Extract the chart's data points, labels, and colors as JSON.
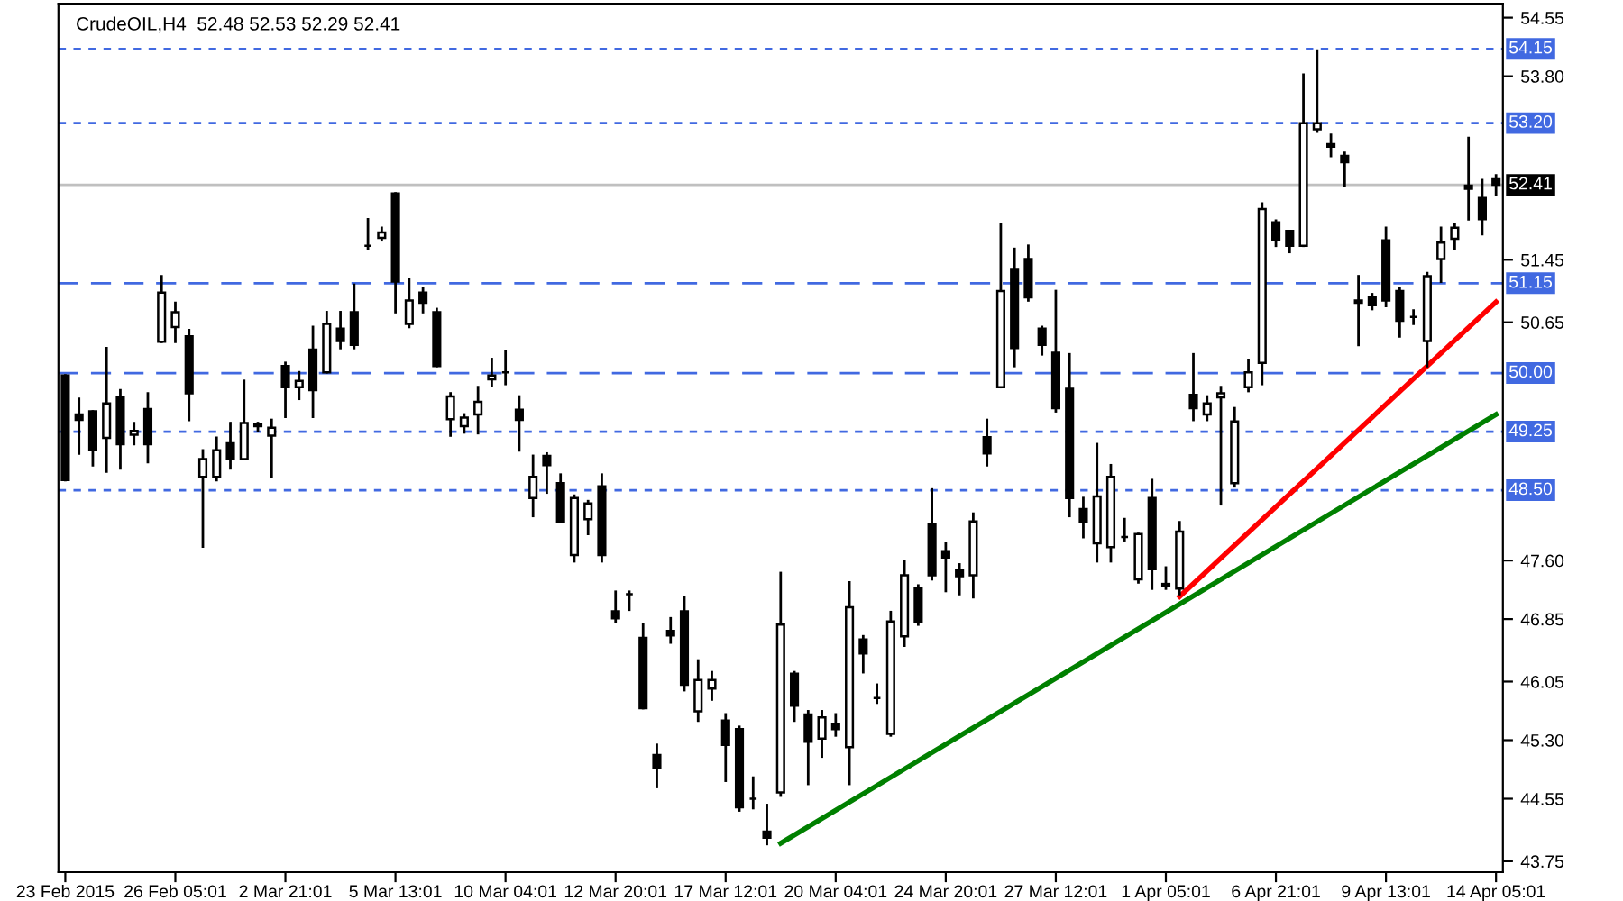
{
  "chart_data": {
    "type": "candlestick",
    "title": "CrudeOIL,H4  52.48 52.53 52.29 52.41",
    "categories": [
      "23 Feb 2015",
      null,
      null,
      null,
      null,
      null,
      null,
      null,
      "26 Feb 05:01",
      null,
      null,
      null,
      null,
      null,
      null,
      null,
      "2 Mar 21:01",
      null,
      null,
      null,
      null,
      null,
      null,
      null,
      "5 Mar 13:01",
      null,
      null,
      null,
      null,
      null,
      null,
      null,
      "10 Mar 04:01",
      null,
      null,
      null,
      null,
      null,
      null,
      null,
      "12 Mar 20:01",
      null,
      null,
      null,
      null,
      null,
      null,
      null,
      "17 Mar 12:01",
      null,
      null,
      null,
      null,
      null,
      null,
      null,
      "20 Mar 04:01",
      null,
      null,
      null,
      null,
      null,
      null,
      null,
      "24 Mar 20:01",
      null,
      null,
      null,
      null,
      null,
      null,
      null,
      "27 Mar 12:01",
      null,
      null,
      null,
      null,
      null,
      null,
      null,
      "1 Apr 05:01",
      null,
      null,
      null,
      null,
      null,
      null,
      null,
      "6 Apr 21:01",
      null,
      null,
      null,
      null,
      null,
      null,
      null,
      "9 Apr 13:01",
      null,
      null,
      null,
      null,
      null,
      null,
      null,
      "14 Apr 05:01"
    ],
    "ohlc": [
      [
        49.97,
        49.97,
        48.63,
        48.63
      ],
      [
        49.47,
        49.67,
        48.97,
        49.4
      ],
      [
        49.51,
        49.51,
        48.82,
        49.01
      ],
      [
        49.17,
        50.32,
        48.74,
        49.61
      ],
      [
        49.69,
        49.78,
        48.78,
        49.09
      ],
      [
        49.21,
        49.36,
        49.09,
        49.26
      ],
      [
        49.54,
        49.74,
        48.86,
        49.09
      ],
      [
        50.4,
        51.24,
        50.4,
        51.03
      ],
      [
        50.59,
        50.9,
        50.4,
        50.78
      ],
      [
        50.47,
        50.55,
        49.4,
        49.74
      ],
      [
        48.67,
        49.01,
        47.78,
        48.9
      ],
      [
        48.67,
        49.17,
        48.63,
        49.01
      ],
      [
        49.1,
        49.36,
        48.78,
        48.9
      ],
      [
        48.9,
        49.9,
        48.9,
        49.36
      ],
      [
        49.32,
        49.36,
        49.26,
        49.34
      ],
      [
        49.2,
        49.4,
        48.67,
        49.3
      ],
      [
        50.09,
        50.13,
        49.44,
        49.82
      ],
      [
        49.82,
        50.01,
        49.67,
        49.9
      ],
      [
        50.3,
        50.59,
        49.44,
        49.78
      ],
      [
        50.01,
        50.78,
        50.01,
        50.63
      ],
      [
        50.57,
        50.78,
        50.32,
        50.41
      ],
      [
        50.78,
        51.13,
        50.32,
        50.36
      ],
      [
        51.63,
        51.97,
        51.59,
        51.63
      ],
      [
        51.73,
        51.86,
        51.7,
        51.8
      ],
      [
        52.3,
        52.3,
        50.78,
        51.17
      ],
      [
        50.63,
        51.2,
        50.59,
        50.93
      ],
      [
        51.03,
        51.09,
        50.78,
        50.9
      ],
      [
        50.78,
        50.82,
        50.09,
        50.09
      ],
      [
        49.41,
        49.74,
        49.2,
        49.7
      ],
      [
        49.32,
        49.47,
        49.24,
        49.43
      ],
      [
        49.47,
        49.82,
        49.23,
        49.63
      ],
      [
        49.92,
        50.18,
        49.84,
        49.97
      ],
      [
        50.01,
        50.28,
        49.86,
        50.01
      ],
      [
        49.53,
        49.7,
        49.01,
        49.4
      ],
      [
        48.4,
        48.94,
        48.17,
        48.67
      ],
      [
        48.94,
        48.97,
        48.47,
        48.82
      ],
      [
        48.59,
        48.7,
        48.1,
        48.1
      ],
      [
        47.67,
        48.43,
        47.59,
        48.4
      ],
      [
        48.13,
        48.36,
        47.94,
        48.33
      ],
      [
        48.55,
        48.7,
        47.59,
        47.67
      ],
      [
        46.95,
        47.2,
        46.82,
        46.86
      ],
      [
        47.17,
        47.2,
        46.97,
        47.17
      ],
      [
        46.61,
        46.78,
        45.71,
        45.71
      ],
      [
        45.11,
        45.24,
        44.7,
        44.94
      ],
      [
        46.7,
        46.86,
        46.55,
        46.64
      ],
      [
        46.95,
        47.13,
        45.94,
        46.01
      ],
      [
        45.67,
        46.32,
        45.55,
        46.07
      ],
      [
        45.96,
        46.17,
        45.82,
        46.07
      ],
      [
        45.55,
        45.63,
        44.78,
        45.24
      ],
      [
        45.44,
        45.47,
        44.4,
        44.44
      ],
      [
        44.55,
        44.82,
        44.43,
        44.55
      ],
      [
        44.13,
        44.47,
        43.97,
        44.05
      ],
      [
        44.63,
        47.44,
        44.59,
        46.78
      ],
      [
        46.15,
        46.17,
        45.55,
        45.74
      ],
      [
        45.63,
        45.67,
        44.74,
        45.28
      ],
      [
        45.32,
        45.67,
        45.09,
        45.59
      ],
      [
        45.51,
        45.63,
        45.36,
        45.44
      ],
      [
        45.21,
        47.32,
        44.74,
        47.0
      ],
      [
        46.59,
        46.63,
        46.17,
        46.41
      ],
      [
        45.84,
        46.01,
        45.78,
        45.84
      ],
      [
        45.38,
        46.94,
        45.36,
        46.82
      ],
      [
        46.63,
        47.59,
        46.51,
        47.41
      ],
      [
        47.24,
        47.28,
        46.78,
        46.82
      ],
      [
        48.07,
        48.51,
        47.36,
        47.41
      ],
      [
        47.72,
        47.82,
        47.21,
        47.64
      ],
      [
        47.47,
        47.55,
        47.17,
        47.4
      ],
      [
        47.41,
        48.2,
        47.13,
        48.1
      ],
      [
        49.18,
        49.4,
        48.82,
        48.97
      ],
      [
        49.82,
        51.9,
        49.82,
        51.05
      ],
      [
        51.32,
        51.59,
        50.09,
        50.32
      ],
      [
        51.46,
        51.63,
        50.93,
        50.97
      ],
      [
        50.57,
        50.59,
        50.24,
        50.36
      ],
      [
        50.26,
        51.05,
        49.51,
        49.55
      ],
      [
        49.8,
        50.24,
        48.17,
        48.4
      ],
      [
        48.26,
        48.4,
        47.9,
        48.09
      ],
      [
        47.82,
        49.09,
        47.59,
        48.42
      ],
      [
        47.77,
        48.82,
        47.59,
        48.67
      ],
      [
        47.9,
        48.13,
        47.86,
        47.9
      ],
      [
        47.36,
        47.94,
        47.32,
        47.94
      ],
      [
        48.4,
        48.63,
        47.24,
        47.49
      ],
      [
        47.3,
        47.51,
        47.24,
        47.28
      ],
      [
        47.24,
        48.09,
        47.17,
        47.97
      ],
      [
        49.72,
        50.24,
        49.4,
        49.55
      ],
      [
        49.47,
        49.7,
        49.4,
        49.61
      ],
      [
        49.69,
        49.82,
        48.32,
        49.74
      ],
      [
        48.59,
        49.55,
        48.55,
        49.38
      ],
      [
        49.82,
        50.16,
        49.77,
        50.01
      ],
      [
        50.13,
        52.17,
        49.86,
        52.1
      ],
      [
        51.93,
        51.95,
        51.63,
        51.7
      ],
      [
        51.82,
        51.82,
        51.55,
        51.63
      ],
      [
        51.63,
        53.82,
        51.63,
        53.2
      ],
      [
        53.12,
        54.13,
        53.09,
        53.2
      ],
      [
        52.93,
        53.05,
        52.78,
        52.9
      ],
      [
        52.78,
        52.82,
        52.4,
        52.7
      ],
      [
        50.93,
        51.24,
        50.36,
        50.9
      ],
      [
        50.97,
        51.01,
        50.82,
        50.87
      ],
      [
        51.7,
        51.86,
        50.86,
        50.93
      ],
      [
        51.05,
        51.09,
        50.47,
        50.67
      ],
      [
        50.72,
        50.8,
        50.63,
        50.72
      ],
      [
        50.41,
        51.28,
        50.09,
        51.24
      ],
      [
        51.46,
        51.86,
        51.17,
        51.67
      ],
      [
        51.72,
        51.9,
        51.59,
        51.86
      ],
      [
        52.4,
        53.01,
        51.97,
        52.36
      ],
      [
        52.24,
        52.47,
        51.78,
        51.97
      ],
      [
        52.48,
        52.53,
        52.29,
        52.41
      ]
    ],
    "series": [
      {
        "type": "line",
        "color": "#008000",
        "values": [
          null,
          null,
          null,
          null,
          null,
          null,
          null,
          null,
          null,
          null,
          null,
          null,
          null,
          null,
          null,
          null,
          null,
          null,
          null,
          null,
          null,
          null,
          null,
          null,
          null,
          null,
          null,
          null,
          null,
          null,
          null,
          null,
          null,
          null,
          null,
          null,
          null,
          null,
          null,
          null,
          null,
          null,
          null,
          null,
          null,
          null,
          null,
          null,
          null,
          null,
          null,
          null,
          43.98,
          null,
          null,
          null,
          null,
          null,
          null,
          null,
          null,
          null,
          null,
          null,
          null,
          null,
          null,
          null,
          null,
          null,
          null,
          null,
          null,
          null,
          null,
          null,
          null,
          null,
          null,
          null,
          null,
          null,
          null,
          null,
          null,
          null,
          null,
          null,
          null,
          null,
          null,
          null,
          null,
          null,
          null,
          null,
          null,
          null,
          null,
          null,
          null,
          null,
          null,
          null,
          49.47
        ]
      },
      {
        "type": "line",
        "color": "#ff0000",
        "values": [
          null,
          null,
          null,
          null,
          null,
          null,
          null,
          null,
          null,
          null,
          null,
          null,
          null,
          null,
          null,
          null,
          null,
          null,
          null,
          null,
          null,
          null,
          null,
          null,
          null,
          null,
          null,
          null,
          null,
          null,
          null,
          null,
          null,
          null,
          null,
          null,
          null,
          null,
          null,
          null,
          null,
          null,
          null,
          null,
          null,
          null,
          null,
          null,
          null,
          null,
          null,
          null,
          null,
          null,
          null,
          null,
          null,
          null,
          null,
          null,
          null,
          null,
          null,
          null,
          null,
          null,
          null,
          null,
          null,
          null,
          null,
          null,
          null,
          null,
          null,
          null,
          null,
          null,
          null,
          null,
          null,
          47.14,
          null,
          null,
          null,
          null,
          null,
          null,
          null,
          null,
          null,
          null,
          null,
          null,
          null,
          null,
          null,
          null,
          null,
          null,
          null,
          null,
          null,
          null,
          50.91
        ]
      }
    ],
    "ref_lines": [
      {
        "axis": "y",
        "value": 54.15,
        "label": "54.15",
        "color": "#4169e1",
        "line_style": "dotted"
      },
      {
        "axis": "y",
        "value": 53.2,
        "label": "53.20",
        "color": "#4169e1",
        "line_style": "dotted"
      },
      {
        "axis": "y",
        "value": 52.41,
        "label": "52.41",
        "color": "#c0c0c0",
        "line_style": "solid"
      },
      {
        "axis": "y",
        "value": 51.15,
        "label": "51.15",
        "color": "#4169e1",
        "line_style": "dashed"
      },
      {
        "axis": "y",
        "value": 50.0,
        "label": "50.00",
        "color": "#4169e1",
        "line_style": "dashed"
      },
      {
        "axis": "y",
        "value": 49.25,
        "label": "49.25",
        "color": "#4169e1",
        "line_style": "dotted"
      },
      {
        "axis": "y",
        "value": 48.5,
        "label": "48.50",
        "color": "#4169e1",
        "line_style": "dotted"
      }
    ],
    "ylim": [
      43.61,
      54.73
    ],
    "yticks": [
      {
        "value": 54.55,
        "label": "54.55"
      },
      {
        "value": 53.8,
        "label": "53.80"
      },
      {
        "value": 51.45,
        "label": "51.45"
      },
      {
        "value": 50.65,
        "label": "50.65"
      },
      {
        "value": 47.6,
        "label": "47.60"
      },
      {
        "value": 46.85,
        "label": "46.85"
      },
      {
        "value": 46.05,
        "label": "46.05"
      },
      {
        "value": 45.3,
        "label": "45.30"
      },
      {
        "value": 44.55,
        "label": "44.55"
      },
      {
        "value": 43.75,
        "label": "43.75"
      }
    ],
    "grid": false,
    "legend": false
  }
}
